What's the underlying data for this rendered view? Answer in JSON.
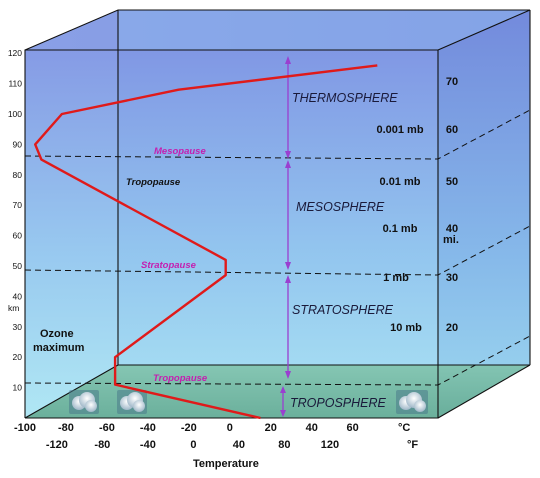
{
  "left_axis": {
    "ticks": [
      "120",
      "110",
      "100",
      "90",
      "80",
      "70",
      "60",
      "50",
      "40",
      "30",
      "20",
      "10"
    ],
    "unit": "km"
  },
  "right_axis": {
    "mi_ticks": [
      "70",
      "60",
      "50",
      "40",
      "30",
      "20"
    ],
    "mi_unit": "mi.",
    "mb_ticks": [
      "0.001 mb",
      "0.01 mb",
      "0.1 mb",
      "1 mb",
      "10 mb"
    ]
  },
  "bottom_axis": {
    "celsius_ticks": [
      "-100",
      "-80",
      "-60",
      "-40",
      "-20",
      "0",
      "20",
      "40",
      "60"
    ],
    "celsius_unit": "°C",
    "fahrenheit_ticks": [
      "-120",
      "-80",
      "-40",
      "0",
      "40",
      "80",
      "120"
    ],
    "fahrenheit_unit": "°F",
    "title": "Temperature"
  },
  "layers": {
    "thermosphere": "THERMOSPHERE",
    "mesosphere": "MESOSPHERE",
    "stratosphere": "STRATOSPHERE",
    "troposphere": "TROPOSPHERE"
  },
  "boundaries": {
    "mesopause": "Mesopause",
    "stratopause": "Stratopause",
    "tropopause": "Tropopause",
    "tropopause_note": "Tropopause"
  },
  "ozone_label_line1": "Ozone",
  "ozone_label_line2": "maximum",
  "colors": {
    "profile": "#e01a1a",
    "arrows": "#9a3fd0",
    "boundary_text": "#c41fb0",
    "sky_top": "#7f96e4",
    "sky_bottom": "#a6e2f2",
    "ground": "#6fb59a"
  },
  "temperature_profile": [
    {
      "altitude_km": 0,
      "temp_c": 15
    },
    {
      "altitude_km": 11,
      "temp_c": -56
    },
    {
      "altitude_km": 20,
      "temp_c": -56
    },
    {
      "altitude_km": 47,
      "temp_c": -2
    },
    {
      "altitude_km": 52,
      "temp_c": -2
    },
    {
      "altitude_km": 85,
      "temp_c": -92
    },
    {
      "altitude_km": 90,
      "temp_c": -95
    },
    {
      "altitude_km": 100,
      "temp_c": -82
    },
    {
      "altitude_km": 108,
      "temp_c": -25
    },
    {
      "altitude_km": 116,
      "temp_c": 72
    }
  ]
}
